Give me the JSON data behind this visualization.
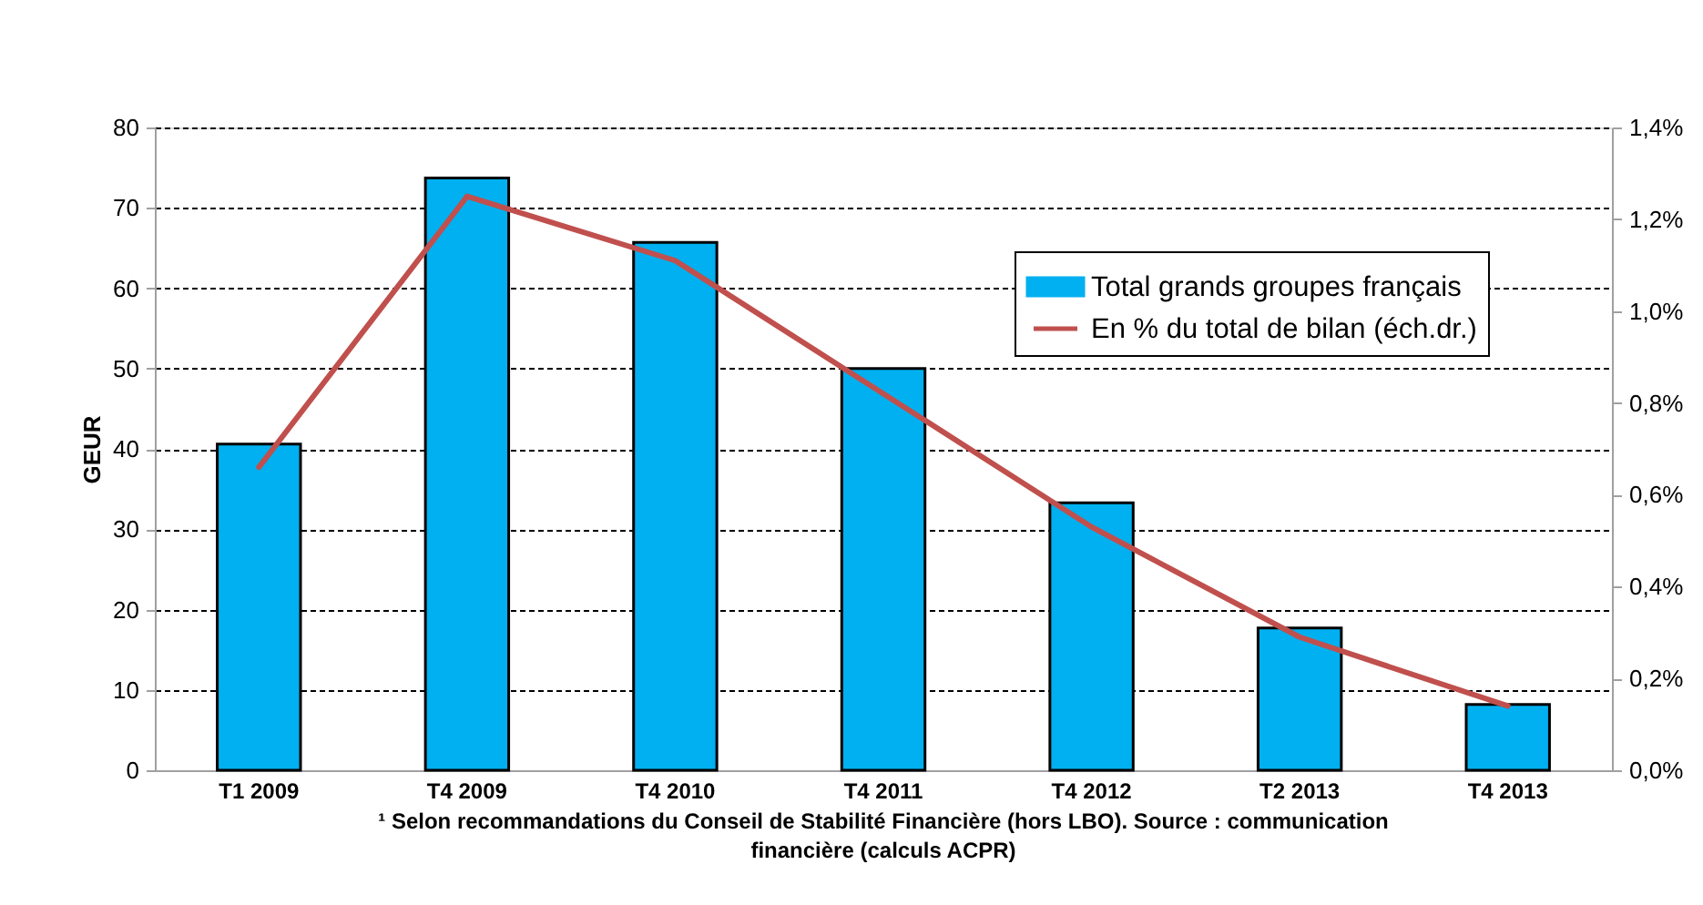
{
  "chart_data": {
    "type": "bar",
    "categories": [
      "T1 2009",
      "T4 2009",
      "T4 2010",
      "T4 2011",
      "T4 2012",
      "T2 2013",
      "T4 2013"
    ],
    "series": [
      {
        "name": "Total grands groupes français",
        "color": "#00b0f0",
        "values": [
          40.6,
          73.7,
          65.7,
          50.0,
          33.3,
          17.7,
          8.2
        ]
      },
      {
        "name": "En % du total de bilan (éch.dr.)",
        "type": "line",
        "axis": "y2",
        "color": "#c0504d",
        "values": [
          0.66,
          1.25,
          1.11,
          0.82,
          0.53,
          0.29,
          0.14
        ]
      }
    ],
    "ylabel": "GEUR",
    "ylim": [
      0,
      80
    ],
    "yticks": [
      0,
      10,
      20,
      30,
      40,
      50,
      60,
      70,
      80
    ],
    "y2lim": [
      0,
      1.4
    ],
    "y2ticks": [
      {
        "value": 0,
        "label": "0,0%"
      },
      {
        "value": 0.2,
        "label": "0,2%"
      },
      {
        "value": 0.4,
        "label": "0,4%"
      },
      {
        "value": 0.6,
        "label": "0,6%"
      },
      {
        "value": 0.8,
        "label": "0,8%"
      },
      {
        "value": 1.0,
        "label": "1,0%"
      },
      {
        "value": 1.2,
        "label": "1,2%"
      },
      {
        "value": 1.4,
        "label": "1,4%"
      }
    ],
    "grid": "y",
    "legend": "top right",
    "annotations": [
      "¹ Selon recommandations du Conseil de Stabilité Financière (hors LBO). Source : communication financière (calculs ACPR)"
    ]
  }
}
